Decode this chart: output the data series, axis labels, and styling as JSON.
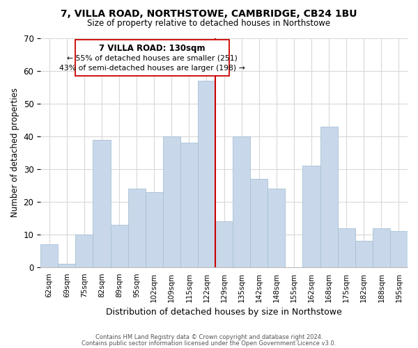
{
  "title": "7, VILLA ROAD, NORTHSTOWE, CAMBRIDGE, CB24 1BU",
  "subtitle": "Size of property relative to detached houses in Northstowe",
  "xlabel": "Distribution of detached houses by size in Northstowe",
  "ylabel": "Number of detached properties",
  "categories": [
    "62sqm",
    "69sqm",
    "75sqm",
    "82sqm",
    "89sqm",
    "95sqm",
    "102sqm",
    "109sqm",
    "115sqm",
    "122sqm",
    "129sqm",
    "135sqm",
    "142sqm",
    "148sqm",
    "155sqm",
    "162sqm",
    "168sqm",
    "175sqm",
    "182sqm",
    "188sqm",
    "195sqm"
  ],
  "values": [
    7,
    1,
    10,
    39,
    13,
    24,
    23,
    40,
    38,
    57,
    14,
    40,
    27,
    24,
    0,
    31,
    43,
    12,
    8,
    12,
    11
  ],
  "bar_color": "#c8d8ea",
  "bar_edge_color": "#a8c0d4",
  "highlight_line_index": 9,
  "highlight_line_color": "#cc0000",
  "ylim": [
    0,
    70
  ],
  "yticks": [
    0,
    10,
    20,
    30,
    40,
    50,
    60,
    70
  ],
  "annotation_title": "7 VILLA ROAD: 130sqm",
  "annotation_line1": "← 55% of detached houses are smaller (251)",
  "annotation_line2": "43% of semi-detached houses are larger (198) →",
  "annotation_box_color": "#ffffff",
  "annotation_box_edge": "#cc0000",
  "footer1": "Contains HM Land Registry data © Crown copyright and database right 2024.",
  "footer2": "Contains public sector information licensed under the Open Government Licence v3.0.",
  "background_color": "#ffffff",
  "grid_color": "#d8d8d8"
}
